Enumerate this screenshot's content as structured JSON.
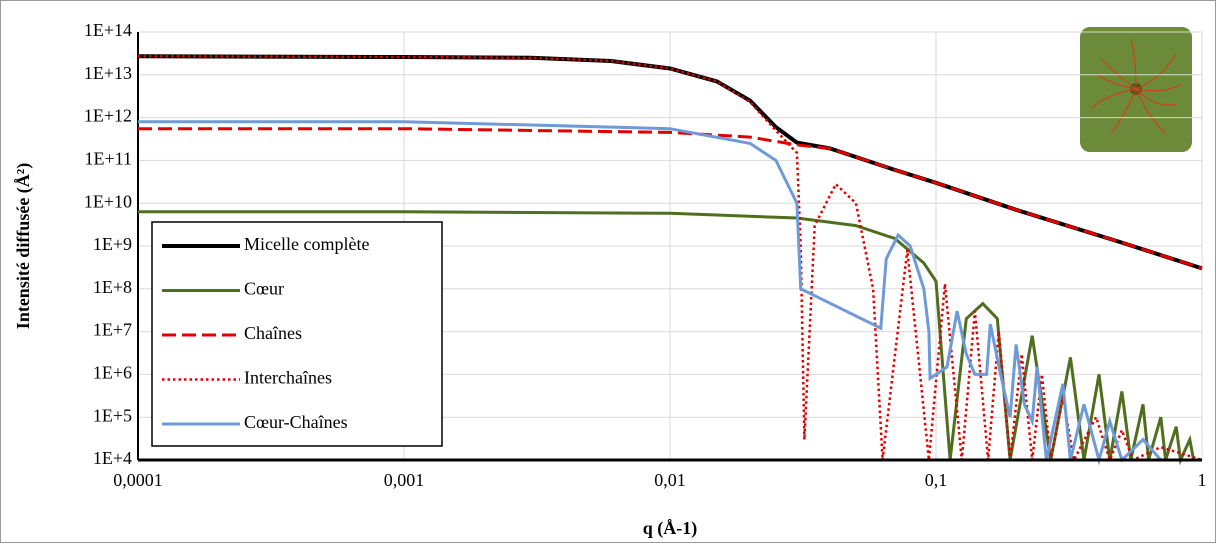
{
  "chart_data": {
    "type": "line",
    "y_title": "Intensité diffusée (Å²)",
    "x_title": "q (Å-1)",
    "log_x": true,
    "log_y": true,
    "grid": true,
    "legend": "lower left",
    "xlim": [
      0.0001,
      1
    ],
    "xticks": [
      {
        "value": 0.0001,
        "label": "0,0001"
      },
      {
        "value": 0.001,
        "label": "0,001"
      },
      {
        "value": 0.01,
        "label": "0,01"
      },
      {
        "value": 0.1,
        "label": "0,1"
      },
      1
    ],
    "ylim": [
      10000.0,
      100000000000000.0
    ],
    "yticks": [
      {
        "value": 10000.0,
        "label": "1E+4"
      },
      {
        "value": 100000.0,
        "label": "1E+5"
      },
      {
        "value": 1000000.0,
        "label": "1E+6"
      },
      {
        "value": 10000000.0,
        "label": "1E+7"
      },
      {
        "value": 100000000.0,
        "label": "1E+8"
      },
      {
        "value": 1000000000.0,
        "label": "1E+9"
      },
      {
        "value": 10000000000.0,
        "label": "1E+10"
      },
      {
        "value": 100000000000.0,
        "label": "1E+11"
      },
      {
        "value": 1000000000000.0,
        "label": "1E+12"
      },
      {
        "value": 10000000000000.0,
        "label": "1E+13"
      },
      {
        "value": 100000000000000.0,
        "label": "1E+14"
      }
    ],
    "series": [
      {
        "name": "Micelle complète",
        "color": "#000000",
        "width": 4,
        "dash": "solid",
        "x": [
          0.0001,
          0.001,
          0.003,
          0.006,
          0.01,
          0.015,
          0.02,
          0.025,
          0.03,
          0.04,
          0.05,
          0.07,
          0.1,
          0.2,
          0.5,
          1
        ],
        "values": [
          27000000000000.0,
          26000000000000.0,
          25000000000000.0,
          21000000000000.0,
          14000000000000.0,
          7000000000000.0,
          2500000000000.0,
          600000000000.0,
          260000000000.0,
          190000000000.0,
          120000000000.0,
          60000000000.0,
          30000000000.0,
          7000000000.0,
          1200000000.0,
          300000000.0
        ]
      },
      {
        "name": "Cœur",
        "color": "#4f6f1e",
        "width": 3,
        "dash": "solid",
        "x": [
          0.0001,
          0.001,
          0.01,
          0.03,
          0.05,
          0.07,
          0.09,
          0.1,
          0.113,
          0.13,
          0.15,
          0.17,
          0.19,
          0.23,
          0.27,
          0.32,
          0.36,
          0.41,
          0.45,
          0.5,
          0.54,
          0.6,
          0.63,
          0.7,
          0.73,
          0.8,
          0.83,
          0.9,
          0.93,
          1
        ],
        "values": [
          6300000000.0,
          6300000000.0,
          5800000000.0,
          4500000000.0,
          3000000000.0,
          1500000000.0,
          400000000.0,
          150000000.0,
          10000.0,
          20000000.0,
          45000000.0,
          20000000.0,
          10000.0,
          8000000.0,
          10000.0,
          2500000.0,
          10000.0,
          1000000.0,
          10000.0,
          400000.0,
          10000.0,
          200000.0,
          10000.0,
          100000.0,
          10000.0,
          60000.0,
          10000.0,
          30000.0,
          10000.0,
          10000.0
        ]
      },
      {
        "name": "Chaînes",
        "color": "#e00000",
        "width": 3,
        "dash": "dashed",
        "x": [
          0.0001,
          0.001,
          0.01,
          0.02,
          0.03,
          0.04,
          0.05,
          0.07,
          0.1,
          0.2,
          0.5,
          1
        ],
        "values": [
          550000000000.0,
          550000000000.0,
          450000000000.0,
          350000000000.0,
          230000000000.0,
          190000000000.0,
          120000000000.0,
          60000000000.0,
          30000000000.0,
          7000000000.0,
          1200000000.0,
          300000000.0
        ]
      },
      {
        "name": "Interchaînes",
        "color": "#e00000",
        "width": 2.5,
        "dash": "dotted",
        "x": [
          0.0001,
          0.001,
          0.003,
          0.006,
          0.01,
          0.015,
          0.02,
          0.025,
          0.03,
          0.031,
          0.032,
          0.035,
          0.042,
          0.05,
          0.058,
          0.063,
          0.078,
          0.094,
          0.108,
          0.125,
          0.14,
          0.157,
          0.172,
          0.19,
          0.21,
          0.23,
          0.25,
          0.27,
          0.3,
          0.33,
          0.4,
          0.45,
          0.5,
          0.55,
          0.7,
          1
        ],
        "values": [
          27000000000000.0,
          26000000000000.0,
          25000000000000.0,
          21000000000000.0,
          14000000000000.0,
          7000000000000.0,
          2300000000000.0,
          500000000000.0,
          150000000000.0,
          1000000000.0,
          30000.0,
          3000000000.0,
          28000000000.0,
          10000000000.0,
          100000000.0,
          10000.0,
          800000000.0,
          10000.0,
          130000000.0,
          10000.0,
          30000000.0,
          10000.0,
          10000000.0,
          10000.0,
          3000000.0,
          10000.0,
          1000000.0,
          10000.0,
          300000.0,
          10000.0,
          100000.0,
          10000.0,
          50000.0,
          10000.0,
          20000.0,
          10000.0
        ]
      },
      {
        "name": "Cœur-Chaînes",
        "color": "#6f9ad8",
        "width": 3,
        "dash": "solid",
        "x": [
          0.0001,
          0.001,
          0.01,
          0.02,
          0.025,
          0.03,
          0.031,
          0.062,
          0.065,
          0.072,
          0.08,
          0.09,
          0.094,
          0.095,
          0.11,
          0.12,
          0.13,
          0.14,
          0.155,
          0.16,
          0.175,
          0.19,
          0.2,
          0.215,
          0.23,
          0.24,
          0.26,
          0.3,
          0.32,
          0.36,
          0.41,
          0.45,
          0.5,
          0.6,
          0.7,
          1
        ],
        "values": [
          800000000000.0,
          800000000000.0,
          550000000000.0,
          250000000000.0,
          100000000000.0,
          10000000000.0,
          100000000.0,
          12000000.0,
          500000000.0,
          1800000000.0,
          1000000000.0,
          100000000.0,
          10000000.0,
          800000.0,
          1500000.0,
          30000000.0,
          3000000.0,
          1000000.0,
          1000000.0,
          15000000.0,
          1000000.0,
          100000.0,
          5000000.0,
          200000.0,
          80000.0,
          1500000.0,
          10000.0,
          600000.0,
          10000.0,
          200000.0,
          10000.0,
          80000.0,
          10000.0,
          30000.0,
          10000.0,
          10000.0
        ]
      }
    ]
  }
}
